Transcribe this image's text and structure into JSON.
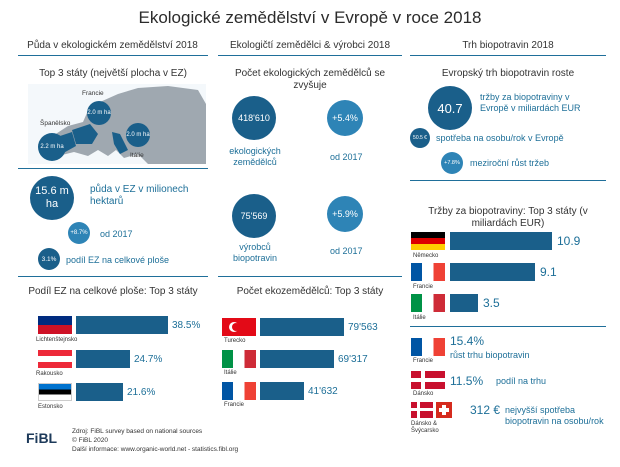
{
  "title": "Ekologické zemědělství v Evropě v roce 2018",
  "columns": {
    "col1": "Půda v ekologickém zemědělství 2018",
    "col2": "Ekologičtí zemědělci & výrobci 2018",
    "col3": "Trh biopotravin 2018"
  },
  "land": {
    "top3_heading": "Top 3 státy (největší plocha v EZ)",
    "map_labels": {
      "france_name": "Francie",
      "france_val": "2.0 m ha",
      "spain_name": "Španělsko",
      "spain_val": "2.2 m ha",
      "italy_name": "Itálie",
      "italy_val": "2.0 m ha"
    },
    "area_value": "15.6 m ha",
    "area_text": "půda v EZ v milionech hektarů",
    "growth_value": "+8.7%",
    "growth_text": "od 2017",
    "share_value": "3.1%",
    "share_text": "podíl EZ na celkové ploše"
  },
  "farmers": {
    "heading": "Počet ekologických zemědělců se zvyšuje",
    "producers_value": "418'610",
    "producers_text": "ekologických zemědělců",
    "producers_growth": "+5.4%",
    "producers_growth_text": "od 2017",
    "processors_value": "75'569",
    "processors_text": "výrobců biopotravin",
    "processors_growth": "+5.9%",
    "processors_growth_text": "od 2017"
  },
  "market": {
    "heading": "Evropský trh biopotravin roste",
    "sales_value": "40.7",
    "sales_text": "tržby za biopotraviny v Evropě v miliardách EUR",
    "percap_value": "50.5 €",
    "percap_text": "spotřeba na osobu/rok v Evropě",
    "growth_value": "+7.8%",
    "growth_text": "meziroční růst tržeb",
    "top3_heading": "Tržby za biopotraviny: Top 3 státy (v miliardách EUR)",
    "top3": [
      {
        "country": "Německo",
        "value": "10.9"
      },
      {
        "country": "Francie",
        "value": "9.1"
      },
      {
        "country": "Itálie",
        "value": "3.5"
      }
    ],
    "facts": [
      {
        "country": "Francie",
        "value": "15.4%",
        "text": "růst trhu biopotravin"
      },
      {
        "country": "Dánsko",
        "value": "11.5%",
        "text": "podíl na trhu"
      },
      {
        "country": "Dánsko & Švýcarsko",
        "value": "312 €",
        "text": "nejvyšší spotřeba biopotravin na osobu/rok"
      }
    ]
  },
  "share_top3": {
    "heading": "Podíl EZ na celkové ploše: Top 3 státy",
    "rows": [
      {
        "country": "Lichtenštejnsko",
        "value": "38.5%"
      },
      {
        "country": "Rakousko",
        "value": "24.7%"
      },
      {
        "country": "Estonsko",
        "value": "21.6%"
      }
    ]
  },
  "farmer_top3": {
    "heading": "Počet ekozemědělců: Top 3 státy",
    "rows": [
      {
        "country": "Turecko",
        "value": "79'563"
      },
      {
        "country": "Itálie",
        "value": "69'317"
      },
      {
        "country": "Francie",
        "value": "41'632"
      }
    ]
  },
  "footer": {
    "logo": "FiBL",
    "line1": "Zdroj: FiBL survey based on national sources",
    "line2": "© FiBL 2020",
    "line3": "Další informace: www.organic-world.net - statistics.fibl.org"
  },
  "colors": {
    "dark": "#1a5f8a",
    "light": "#2e84b6",
    "text": "#1d6f98"
  }
}
